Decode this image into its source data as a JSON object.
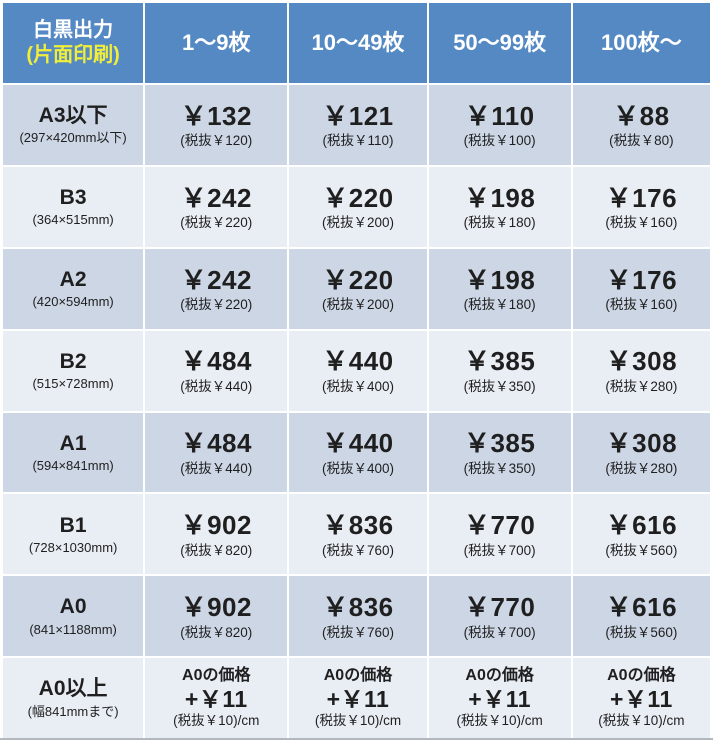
{
  "colors": {
    "header_bg": "#5589c4",
    "header_text": "#ffffff",
    "header_accent": "#f1ee3a",
    "row_dark": "#ccd6e5",
    "row_light": "#e9edf4",
    "divider": "#ffffff",
    "text": "#1f1f1f"
  },
  "table": {
    "corner": {
      "line1": "白黒出力",
      "line2": "(片面印刷)"
    },
    "columns": [
      "1〜9枚",
      "10〜49枚",
      "50〜99枚",
      "100枚〜"
    ],
    "rows": [
      {
        "size": "A3以下",
        "dims": "(297×420mm以下)",
        "cells": [
          {
            "price": "￥132",
            "tax": "(税抜￥120)"
          },
          {
            "price": "￥121",
            "tax": "(税抜￥110)"
          },
          {
            "price": "￥110",
            "tax": "(税抜￥100)"
          },
          {
            "price": "￥88",
            "tax": "(税抜￥80)"
          }
        ]
      },
      {
        "size": "B3",
        "dims": "(364×515mm)",
        "cells": [
          {
            "price": "￥242",
            "tax": "(税抜￥220)"
          },
          {
            "price": "￥220",
            "tax": "(税抜￥200)"
          },
          {
            "price": "￥198",
            "tax": "(税抜￥180)"
          },
          {
            "price": "￥176",
            "tax": "(税抜￥160)"
          }
        ]
      },
      {
        "size": "A2",
        "dims": "(420×594mm)",
        "cells": [
          {
            "price": "￥242",
            "tax": "(税抜￥220)"
          },
          {
            "price": "￥220",
            "tax": "(税抜￥200)"
          },
          {
            "price": "￥198",
            "tax": "(税抜￥180)"
          },
          {
            "price": "￥176",
            "tax": "(税抜￥160)"
          }
        ]
      },
      {
        "size": "B2",
        "dims": "(515×728mm)",
        "cells": [
          {
            "price": "￥484",
            "tax": "(税抜￥440)"
          },
          {
            "price": "￥440",
            "tax": "(税抜￥400)"
          },
          {
            "price": "￥385",
            "tax": "(税抜￥350)"
          },
          {
            "price": "￥308",
            "tax": "(税抜￥280)"
          }
        ]
      },
      {
        "size": "A1",
        "dims": "(594×841mm)",
        "cells": [
          {
            "price": "￥484",
            "tax": "(税抜￥440)"
          },
          {
            "price": "￥440",
            "tax": "(税抜￥400)"
          },
          {
            "price": "￥385",
            "tax": "(税抜￥350)"
          },
          {
            "price": "￥308",
            "tax": "(税抜￥280)"
          }
        ]
      },
      {
        "size": "B1",
        "dims": "(728×1030mm)",
        "cells": [
          {
            "price": "￥902",
            "tax": "(税抜￥820)"
          },
          {
            "price": "￥836",
            "tax": "(税抜￥760)"
          },
          {
            "price": "￥770",
            "tax": "(税抜￥700)"
          },
          {
            "price": "￥616",
            "tax": "(税抜￥560)"
          }
        ]
      },
      {
        "size": "A0",
        "dims": "(841×1188mm)",
        "cells": [
          {
            "price": "￥902",
            "tax": "(税抜￥820)"
          },
          {
            "price": "￥836",
            "tax": "(税抜￥760)"
          },
          {
            "price": "￥770",
            "tax": "(税抜￥700)"
          },
          {
            "price": "￥616",
            "tax": "(税抜￥560)"
          }
        ]
      },
      {
        "size": "A0以上",
        "dims": "(幅841mmまで)",
        "cells": [
          {
            "top": "A0の価格",
            "price": "+￥11",
            "tax": "(税抜￥10)/cm"
          },
          {
            "top": "A0の価格",
            "price": "+￥11",
            "tax": "(税抜￥10)/cm"
          },
          {
            "top": "A0の価格",
            "price": "+￥11",
            "tax": "(税抜￥10)/cm"
          },
          {
            "top": "A0の価格",
            "price": "+￥11",
            "tax": "(税抜￥10)/cm"
          }
        ]
      }
    ]
  }
}
